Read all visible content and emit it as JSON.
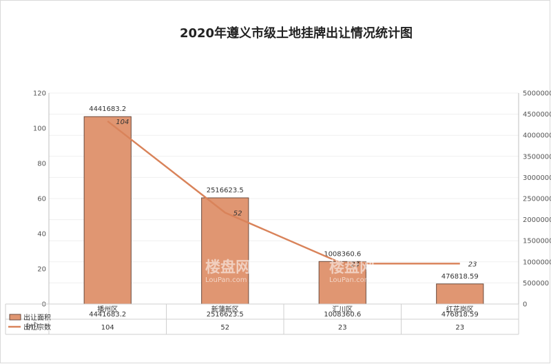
{
  "title": "2020年遵义市级土地挂牌出让情况统计图",
  "chart_data": {
    "type": "bar",
    "title": "2020年遵义市级土地挂牌出让情况统计图",
    "categories": [
      "播州区",
      "新蒲新区",
      "汇川区",
      "红花岗区"
    ],
    "series": [
      {
        "name": "出让面积(㎡)",
        "type": "bar",
        "axis": "right",
        "color": "#e09672",
        "values": [
          4441683.2,
          2516623.5,
          1008360.6,
          476818.59
        ],
        "labels": [
          "4441683.2",
          "2516623.5",
          "1008360.6",
          "476818.59"
        ]
      },
      {
        "name": "出让宗数",
        "type": "line",
        "axis": "left",
        "color": "#d9835a",
        "values": [
          104,
          52,
          23,
          23
        ],
        "labels": [
          "104",
          "52",
          "23",
          "23"
        ]
      }
    ],
    "y_left": {
      "range": [
        0,
        120
      ],
      "ticks": [
        "0",
        "20",
        "40",
        "60",
        "80",
        "100",
        "120"
      ]
    },
    "y_right": {
      "range": [
        0,
        5000000
      ],
      "ticks": [
        "0",
        "500000",
        "1000000",
        "1500000",
        "2000000",
        "2500000",
        "3000000",
        "3500000",
        "4000000",
        "4500000",
        "5000000"
      ]
    },
    "grid": true,
    "legend": "data-table-bottom"
  },
  "data_table": {
    "rows": [
      {
        "legend": "出让面积",
        "legend_unit": "(㎡)",
        "cells": [
          "4441683.2",
          "2516623.5",
          "1008360.6",
          "476818.59"
        ]
      },
      {
        "legend": "出让宗数",
        "cells": [
          "104",
          "52",
          "23",
          "23"
        ]
      }
    ]
  },
  "watermark": {
    "text": "楼盘网",
    "sub": "LouPan.com"
  }
}
